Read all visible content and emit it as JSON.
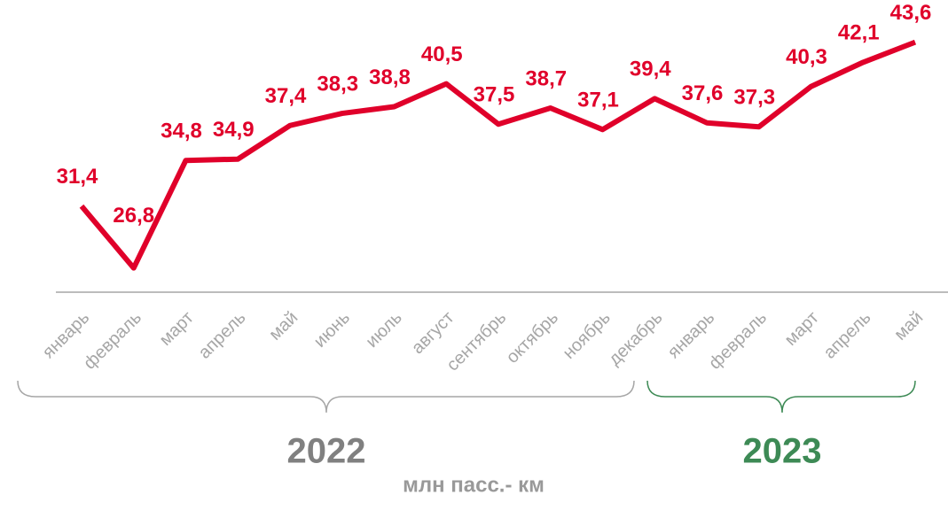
{
  "chart_data": {
    "type": "line",
    "categories": [
      "январь",
      "февраль",
      "март",
      "апрель",
      "май",
      "июнь",
      "июль",
      "август",
      "сентябрь",
      "октябрь",
      "ноябрь",
      "декабрь",
      "январь",
      "февраль",
      "март",
      "апрель",
      "май"
    ],
    "series": [
      {
        "color": "#e0002a",
        "values": [
          31.4,
          26.8,
          34.8,
          34.9,
          37.4,
          38.3,
          38.8,
          40.5,
          37.5,
          38.7,
          37.1,
          39.4,
          37.6,
          37.3,
          40.3,
          42.1,
          43.6
        ],
        "value_labels": [
          "31,4",
          "26,8",
          "34,8",
          "34,9",
          "37,4",
          "38,3",
          "38,8",
          "40,5",
          "37,5",
          "38,7",
          "37,1",
          "39,4",
          "37,6",
          "37,3",
          "40,3",
          "42,1",
          "43,6"
        ]
      }
    ],
    "ylim": [
      25,
      47
    ],
    "groups": [
      {
        "label": "2022",
        "color": "#808080"
      },
      {
        "label": "2023",
        "color": "#3d8a55"
      }
    ],
    "xlabel": "млн пасс.- км"
  }
}
